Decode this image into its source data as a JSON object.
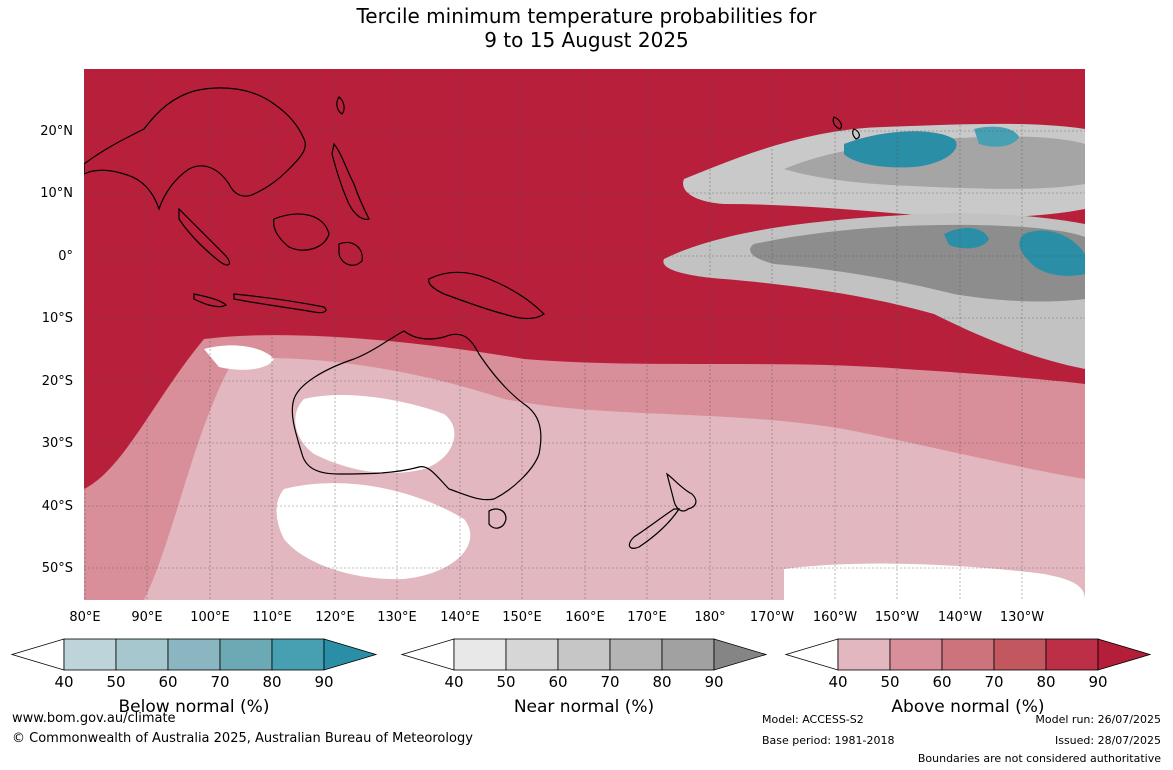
{
  "title_line1": "Tercile minimum temperature probabilities for",
  "title_line2": "9 to 15 August 2025",
  "lat_labels": [
    "20°N",
    "10°N",
    "0°",
    "10°S",
    "20°S",
    "30°S",
    "40°S",
    "50°S"
  ],
  "lon_labels": [
    "80°E",
    "90°E",
    "100°E",
    "110°E",
    "120°E",
    "130°E",
    "140°E",
    "150°E",
    "160°E",
    "170°E",
    "180°",
    "170°W",
    "160°W",
    "150°W",
    "140°W",
    "130°W"
  ],
  "legends": {
    "below": {
      "caption": "Below normal (%)",
      "ticks": [
        "40",
        "50",
        "60",
        "70",
        "80",
        "90"
      ],
      "colors": [
        "#bcd4da",
        "#a6c7cd",
        "#8ab6c1",
        "#6ba9b5",
        "#47a0b2",
        "#2a8ea6"
      ]
    },
    "near": {
      "caption": "Near normal (%)",
      "ticks": [
        "40",
        "50",
        "60",
        "70",
        "80",
        "90"
      ],
      "colors": [
        "#e8e8e8",
        "#d6d6d6",
        "#c6c6c6",
        "#b4b4b4",
        "#a1a1a1",
        "#858585"
      ]
    },
    "above": {
      "caption": "Above normal (%)",
      "ticks": [
        "40",
        "50",
        "60",
        "70",
        "80",
        "90"
      ],
      "colors": [
        "#e2b7bf",
        "#d88f99",
        "#cd737c",
        "#c35760",
        "#bc2f47",
        "#b41e38"
      ]
    }
  },
  "footer": {
    "website": "www.bom.gov.au/climate",
    "copyright": "© Commonwealth of Australia 2025, Australian Bureau of Meteorology",
    "model": "Model: ACCESS-S2",
    "base_period": "Base period: 1981-2018",
    "model_run": "Model run: 26/07/2025",
    "issued": "Issued: 28/07/2025",
    "disclaimer": "Boundaries are not considered authoritative"
  }
}
